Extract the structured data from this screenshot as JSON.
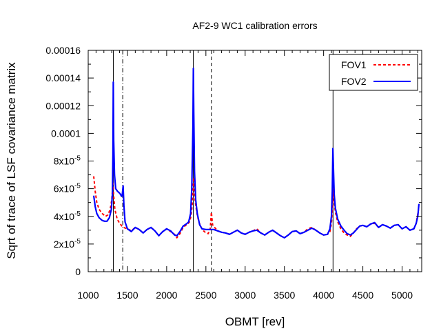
{
  "chart_data": {
    "type": "line",
    "title": "AF2-9 WC1 calibration errors",
    "xlabel": "OBMT [rev]",
    "ylabel": "Sqrt of trace of LSF covariance matrix",
    "xlim": [
      1000,
      5250
    ],
    "ylim": [
      0,
      0.00016
    ],
    "xticks": [
      1000,
      1500,
      2000,
      2500,
      3000,
      3500,
      4000,
      4500,
      5000
    ],
    "xtick_labels": [
      "1000",
      "1500",
      "2000",
      "2500",
      "3000",
      "3500",
      "4000",
      "4500",
      "5000"
    ],
    "yticks": [
      {
        "value": 0,
        "label": "0"
      },
      {
        "value": 2e-05,
        "label": "2x10",
        "exp": "-5"
      },
      {
        "value": 4e-05,
        "label": "4x10",
        "exp": "-5"
      },
      {
        "value": 6e-05,
        "label": "6x10",
        "exp": "-5"
      },
      {
        "value": 8e-05,
        "label": "8x10",
        "exp": "-5"
      },
      {
        "value": 0.0001,
        "label": "0.0001"
      },
      {
        "value": 0.00012,
        "label": "0.00012"
      },
      {
        "value": 0.00014,
        "label": "0.00014"
      },
      {
        "value": 0.00016,
        "label": "0.00016"
      }
    ],
    "grid": false,
    "legend_position": "top-right",
    "vertical_lines": [
      {
        "x": 1320,
        "style": "solid"
      },
      {
        "x": 1440,
        "style": "dashdot"
      },
      {
        "x": 2340,
        "style": "solid"
      },
      {
        "x": 2570,
        "style": "dashed"
      },
      {
        "x": 4120,
        "style": "solid"
      }
    ],
    "series": [
      {
        "name": "FOV1",
        "color": "#ff0000",
        "style": "dashed",
        "points": [
          [
            1070,
            6.9e-05
          ],
          [
            1090,
            5.8e-05
          ],
          [
            1110,
            5e-05
          ],
          [
            1140,
            4.5e-05
          ],
          [
            1180,
            4.2e-05
          ],
          [
            1220,
            4e-05
          ],
          [
            1250,
            4.1e-05
          ],
          [
            1280,
            4.5e-05
          ],
          [
            1300,
            5.2e-05
          ],
          [
            1315,
            6.4e-05
          ],
          [
            1325,
            5.5e-05
          ],
          [
            1340,
            4.5e-05
          ],
          [
            1370,
            3.8e-05
          ],
          [
            1400,
            3.5e-05
          ],
          [
            1430,
            3.3e-05
          ],
          [
            1450,
            3.2e-05
          ],
          [
            1500,
            3.1e-05
          ],
          [
            1550,
            2.95e-05
          ],
          [
            1600,
            3.2e-05
          ],
          [
            1650,
            3.05e-05
          ],
          [
            1700,
            2.8e-05
          ],
          [
            1750,
            3.05e-05
          ],
          [
            1800,
            3.2e-05
          ],
          [
            1850,
            2.95e-05
          ],
          [
            1900,
            2.6e-05
          ],
          [
            1950,
            2.9e-05
          ],
          [
            2000,
            3.1e-05
          ],
          [
            2050,
            2.9e-05
          ],
          [
            2100,
            2.7e-05
          ],
          [
            2130,
            2.45e-05
          ],
          [
            2170,
            2.75e-05
          ],
          [
            2200,
            3.1e-05
          ],
          [
            2230,
            3.3e-05
          ],
          [
            2260,
            3.4e-05
          ],
          [
            2290,
            3.6e-05
          ],
          [
            2310,
            4e-05
          ],
          [
            2325,
            4.8e-05
          ],
          [
            2338,
            6.2e-05
          ],
          [
            2345,
            6.8e-05
          ],
          [
            2355,
            5.6e-05
          ],
          [
            2370,
            4.8e-05
          ],
          [
            2390,
            4.1e-05
          ],
          [
            2410,
            3.6e-05
          ],
          [
            2440,
            3.2e-05
          ],
          [
            2470,
            2.95e-05
          ],
          [
            2500,
            2.8e-05
          ],
          [
            2530,
            2.75e-05
          ],
          [
            2555,
            3.1e-05
          ],
          [
            2570,
            4.3e-05
          ],
          [
            2585,
            3.4e-05
          ],
          [
            2610,
            3.2e-05
          ],
          [
            2650,
            2.95e-05
          ],
          [
            2700,
            2.85e-05
          ],
          [
            2750,
            2.8e-05
          ],
          [
            2800,
            2.7e-05
          ],
          [
            2850,
            2.85e-05
          ],
          [
            2900,
            3e-05
          ],
          [
            2950,
            2.8e-05
          ],
          [
            3000,
            2.7e-05
          ],
          [
            3050,
            2.85e-05
          ],
          [
            3100,
            2.95e-05
          ],
          [
            3150,
            3.1e-05
          ],
          [
            3200,
            2.8e-05
          ],
          [
            3250,
            2.65e-05
          ],
          [
            3300,
            2.85e-05
          ],
          [
            3350,
            3e-05
          ],
          [
            3400,
            2.8e-05
          ],
          [
            3450,
            2.6e-05
          ],
          [
            3500,
            2.45e-05
          ],
          [
            3550,
            2.65e-05
          ],
          [
            3600,
            2.9e-05
          ],
          [
            3650,
            2.95e-05
          ],
          [
            3700,
            2.75e-05
          ],
          [
            3750,
            2.85e-05
          ],
          [
            3800,
            3.1e-05
          ],
          [
            3850,
            3.2e-05
          ],
          [
            3900,
            3e-05
          ],
          [
            3950,
            2.8e-05
          ],
          [
            4000,
            2.65e-05
          ],
          [
            4050,
            2.7e-05
          ],
          [
            4080,
            2.9e-05
          ],
          [
            4100,
            3.5e-05
          ],
          [
            4115,
            4.8e-05
          ],
          [
            4122,
            6e-05
          ],
          [
            4130,
            5.3e-05
          ],
          [
            4150,
            4.3e-05
          ],
          [
            4180,
            3.6e-05
          ],
          [
            4220,
            3.1e-05
          ],
          [
            4260,
            2.8e-05
          ],
          [
            4300,
            2.65e-05
          ],
          [
            4340,
            2.55e-05
          ],
          [
            4380,
            2.8e-05
          ],
          [
            4420,
            3.1e-05
          ],
          [
            4460,
            3.3e-05
          ],
          [
            4500,
            3.35e-05
          ],
          [
            4550,
            3.25e-05
          ],
          [
            4600,
            3.45e-05
          ],
          [
            4650,
            3.5e-05
          ],
          [
            4700,
            3.2e-05
          ],
          [
            4750,
            3.4e-05
          ],
          [
            4800,
            3.3e-05
          ],
          [
            4850,
            3.15e-05
          ],
          [
            4900,
            3.35e-05
          ],
          [
            4950,
            3.4e-05
          ],
          [
            5000,
            3.1e-05
          ],
          [
            5050,
            3.25e-05
          ],
          [
            5100,
            3e-05
          ],
          [
            5150,
            3.1e-05
          ],
          [
            5180,
            3.5e-05
          ],
          [
            5210,
            4.5e-05
          ]
        ]
      },
      {
        "name": "FOV2",
        "color": "#0000ff",
        "style": "solid",
        "points": [
          [
            1070,
            5.5e-05
          ],
          [
            1090,
            4.7e-05
          ],
          [
            1110,
            4.2e-05
          ],
          [
            1140,
            3.9e-05
          ],
          [
            1180,
            3.7e-05
          ],
          [
            1210,
            3.65e-05
          ],
          [
            1240,
            3.65e-05
          ],
          [
            1270,
            3.9e-05
          ],
          [
            1295,
            4.5e-05
          ],
          [
            1308,
            5.6e-05
          ],
          [
            1315,
            8.5e-05
          ],
          [
            1320,
            0.000137
          ],
          [
            1325,
            9.5e-05
          ],
          [
            1335,
            7e-05
          ],
          [
            1350,
            6e-05
          ],
          [
            1375,
            5.8e-05
          ],
          [
            1395,
            5.7e-05
          ],
          [
            1410,
            5.6e-05
          ],
          [
            1425,
            5.45e-05
          ],
          [
            1435,
            5.6e-05
          ],
          [
            1445,
            6.2e-05
          ],
          [
            1455,
            4.8e-05
          ],
          [
            1470,
            3.6e-05
          ],
          [
            1500,
            3.1e-05
          ],
          [
            1550,
            2.9e-05
          ],
          [
            1600,
            3.2e-05
          ],
          [
            1650,
            3.05e-05
          ],
          [
            1700,
            2.8e-05
          ],
          [
            1750,
            3.05e-05
          ],
          [
            1800,
            3.2e-05
          ],
          [
            1850,
            2.95e-05
          ],
          [
            1900,
            2.6e-05
          ],
          [
            1950,
            2.9e-05
          ],
          [
            2000,
            3.1e-05
          ],
          [
            2050,
            2.95e-05
          ],
          [
            2100,
            2.65e-05
          ],
          [
            2130,
            2.6e-05
          ],
          [
            2170,
            2.9e-05
          ],
          [
            2210,
            3.3e-05
          ],
          [
            2250,
            3.45e-05
          ],
          [
            2280,
            3.6e-05
          ],
          [
            2305,
            4.2e-05
          ],
          [
            2320,
            6e-05
          ],
          [
            2335,
            0.000105
          ],
          [
            2340,
            0.000147
          ],
          [
            2345,
            0.000115
          ],
          [
            2355,
            7.2e-05
          ],
          [
            2370,
            5.2e-05
          ],
          [
            2390,
            4.2e-05
          ],
          [
            2420,
            3.4e-05
          ],
          [
            2450,
            3.1e-05
          ],
          [
            2500,
            3.05e-05
          ],
          [
            2550,
            3.05e-05
          ],
          [
            2600,
            3.05e-05
          ],
          [
            2650,
            2.95e-05
          ],
          [
            2700,
            2.85e-05
          ],
          [
            2750,
            2.8e-05
          ],
          [
            2800,
            2.7e-05
          ],
          [
            2850,
            2.85e-05
          ],
          [
            2900,
            3e-05
          ],
          [
            2950,
            2.8e-05
          ],
          [
            3000,
            2.7e-05
          ],
          [
            3050,
            2.85e-05
          ],
          [
            3100,
            2.95e-05
          ],
          [
            3150,
            3e-05
          ],
          [
            3200,
            2.8e-05
          ],
          [
            3250,
            2.65e-05
          ],
          [
            3300,
            2.85e-05
          ],
          [
            3350,
            3e-05
          ],
          [
            3400,
            2.8e-05
          ],
          [
            3450,
            2.6e-05
          ],
          [
            3500,
            2.45e-05
          ],
          [
            3550,
            2.65e-05
          ],
          [
            3600,
            2.9e-05
          ],
          [
            3650,
            2.95e-05
          ],
          [
            3700,
            2.75e-05
          ],
          [
            3750,
            2.85e-05
          ],
          [
            3800,
            3e-05
          ],
          [
            3850,
            3.15e-05
          ],
          [
            3900,
            3e-05
          ],
          [
            3950,
            2.8e-05
          ],
          [
            4000,
            2.65e-05
          ],
          [
            4050,
            2.7e-05
          ],
          [
            4080,
            3.1e-05
          ],
          [
            4100,
            4e-05
          ],
          [
            4110,
            5.8e-05
          ],
          [
            4118,
            8.9e-05
          ],
          [
            4125,
            7.5e-05
          ],
          [
            4135,
            5.6e-05
          ],
          [
            4150,
            4.6e-05
          ],
          [
            4180,
            3.8e-05
          ],
          [
            4220,
            3.3e-05
          ],
          [
            4260,
            3e-05
          ],
          [
            4300,
            2.75e-05
          ],
          [
            4340,
            2.65e-05
          ],
          [
            4380,
            2.8e-05
          ],
          [
            4420,
            3.05e-05
          ],
          [
            4460,
            3.3e-05
          ],
          [
            4500,
            3.35e-05
          ],
          [
            4550,
            3.25e-05
          ],
          [
            4600,
            3.45e-05
          ],
          [
            4650,
            3.55e-05
          ],
          [
            4700,
            3.2e-05
          ],
          [
            4750,
            3.4e-05
          ],
          [
            4800,
            3.3e-05
          ],
          [
            4850,
            3.15e-05
          ],
          [
            4900,
            3.35e-05
          ],
          [
            4950,
            3.4e-05
          ],
          [
            5000,
            3.1e-05
          ],
          [
            5050,
            3.25e-05
          ],
          [
            5100,
            3e-05
          ],
          [
            5150,
            3.1e-05
          ],
          [
            5180,
            3.5e-05
          ],
          [
            5200,
            4e-05
          ],
          [
            5215,
            4.9e-05
          ]
        ]
      }
    ]
  }
}
